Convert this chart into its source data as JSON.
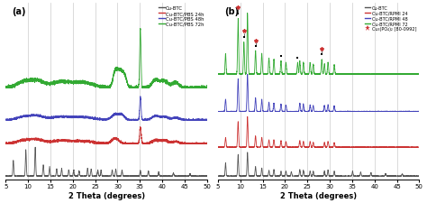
{
  "fig_width": 4.74,
  "fig_height": 2.26,
  "dpi": 100,
  "panel_a": {
    "label": "(a)",
    "xlabel": "2 Theta (degrees)",
    "xlim": [
      5,
      50
    ],
    "xticks": [
      5,
      10,
      15,
      20,
      25,
      30,
      35,
      40,
      45,
      50
    ],
    "grid_x": [
      10,
      15,
      20,
      25,
      30,
      35,
      40,
      45
    ],
    "legend": [
      "Cu-BTC",
      "Cu-BTC/PBS 24h",
      "Cu-BTC/PBS 48h",
      "Cu-BTC/PBS 72h"
    ],
    "colors": [
      "#555555",
      "#cc3333",
      "#4444bb",
      "#33aa33"
    ]
  },
  "panel_b": {
    "label": "(b)",
    "xlabel": "2 Theta (degrees)",
    "xlim": [
      5,
      50
    ],
    "xticks": [
      5,
      10,
      15,
      20,
      25,
      30,
      35,
      40,
      45,
      50
    ],
    "grid_x": [
      10,
      15,
      20,
      25,
      30,
      35,
      40,
      45
    ],
    "legend": [
      "Cu-BTC",
      "Cu-BTC/RPMI 24",
      "Cu-BTC/RPMI 48",
      "Cu-BTC/RPMI 72"
    ],
    "legend5": "Cu₃(PO₄)₂ [80-0992]",
    "colors": [
      "#555555",
      "#cc3333",
      "#4444bb",
      "#33aa33"
    ]
  }
}
